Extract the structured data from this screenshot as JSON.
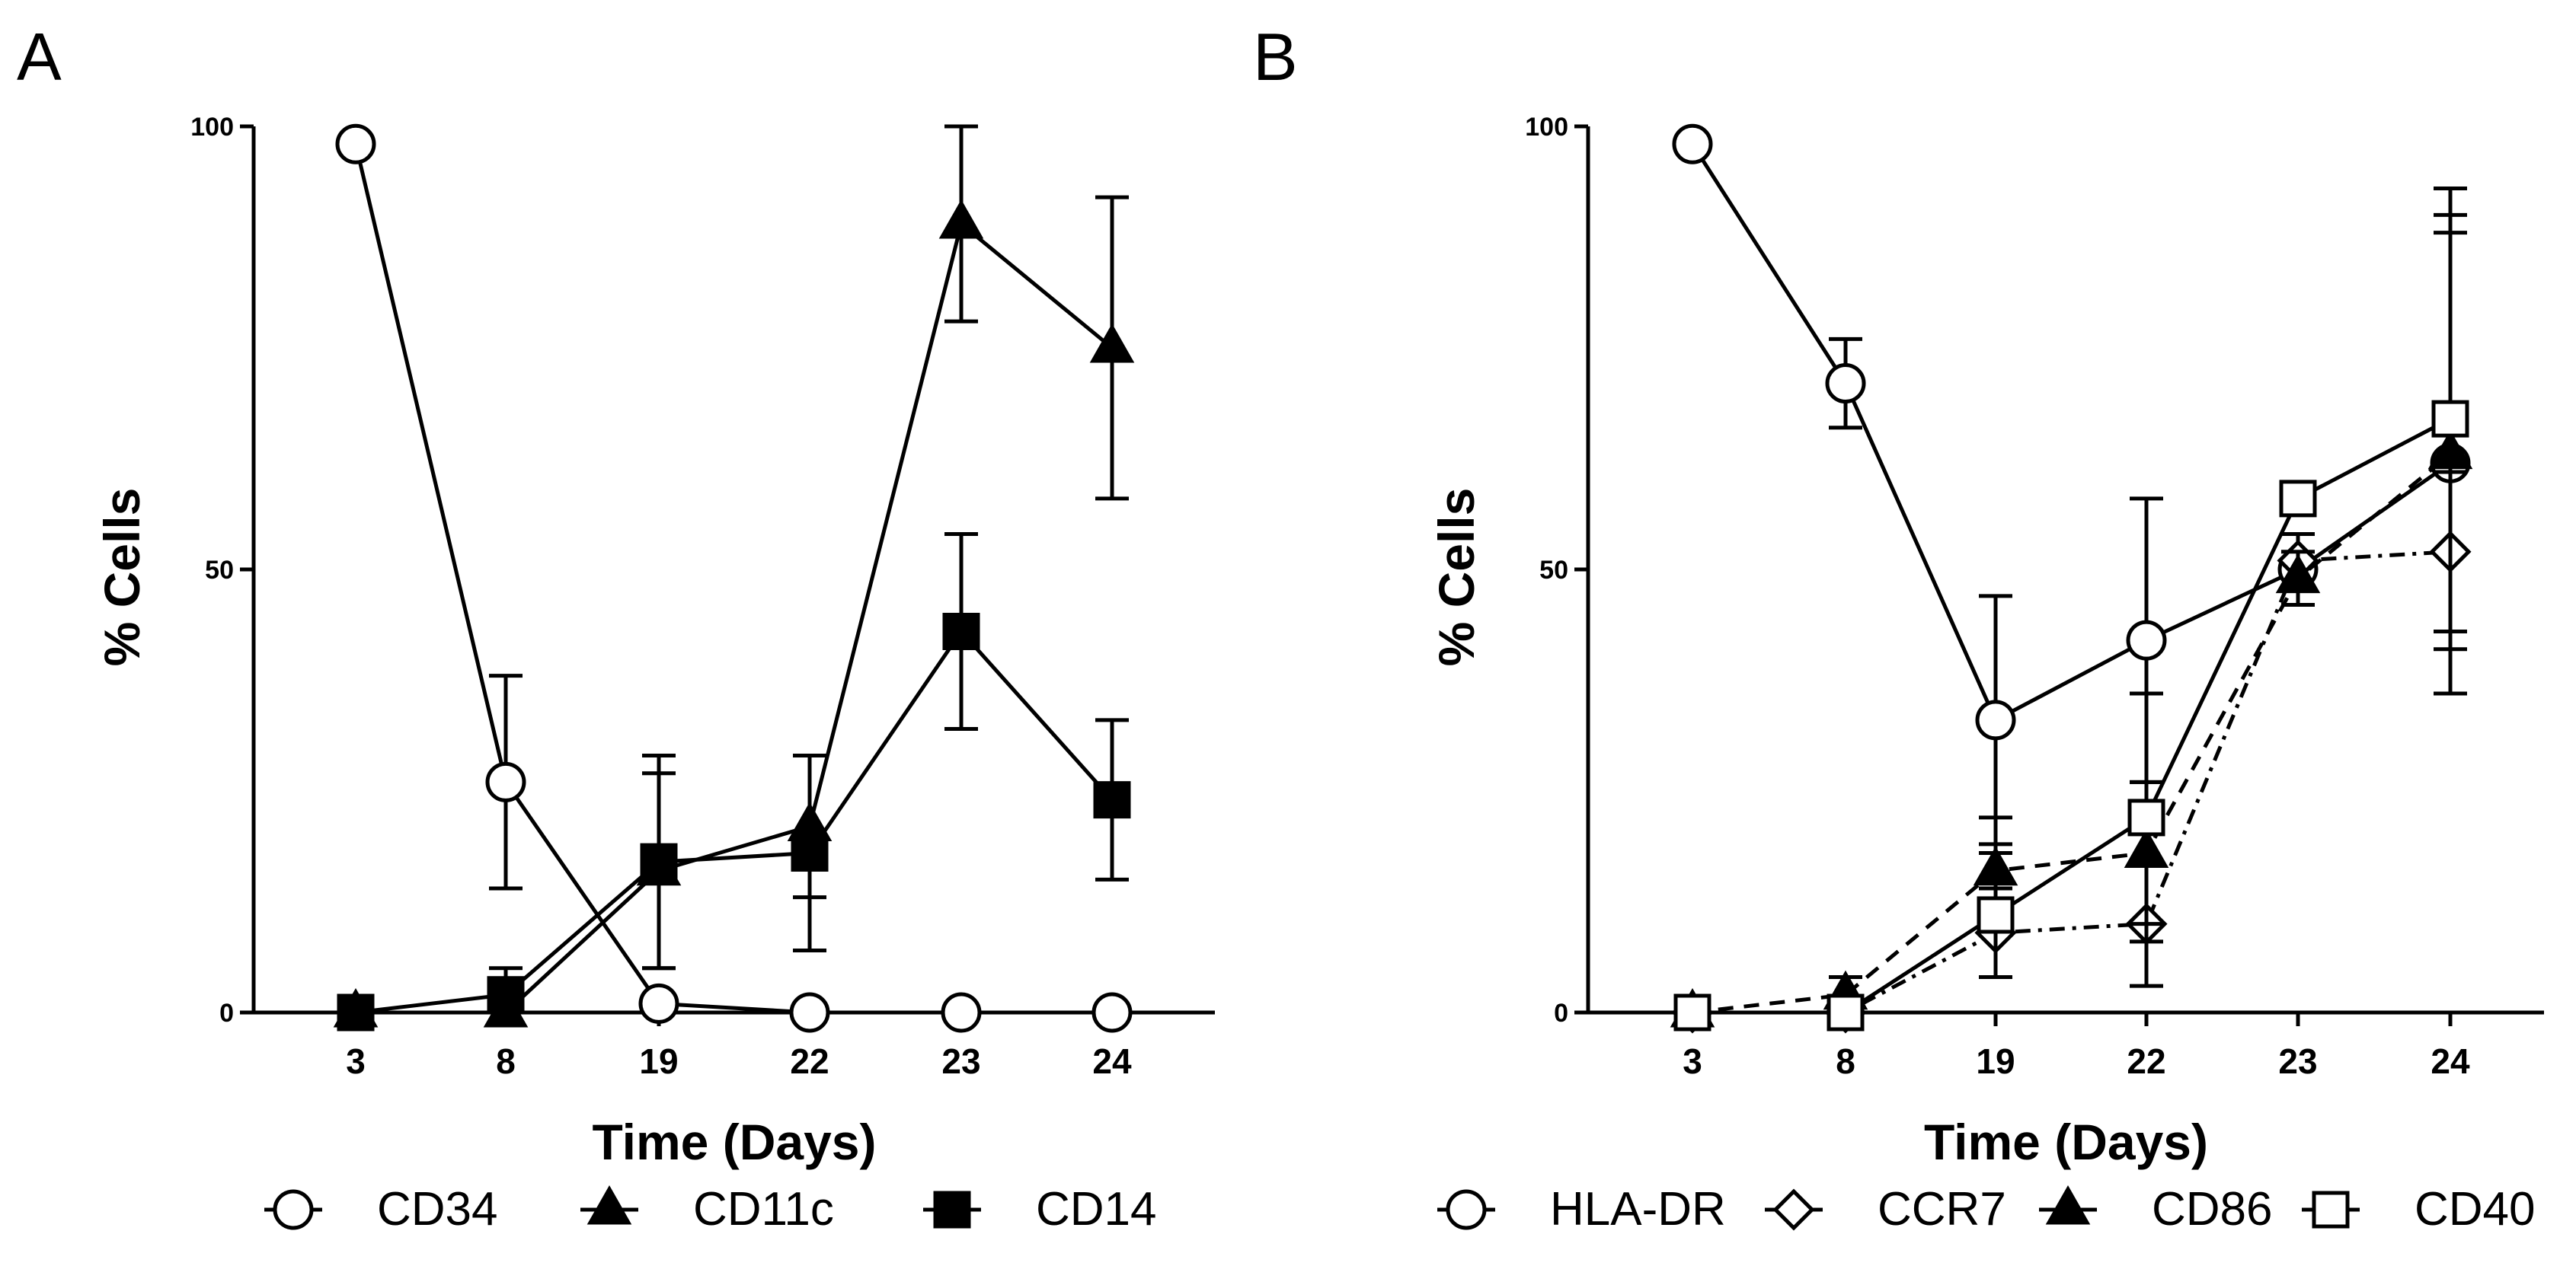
{
  "chart_data": [
    {
      "panel_label": "A",
      "type": "line",
      "xlabel": "Time (Days)",
      "ylabel": "% Cells",
      "categories": [
        "3",
        "8",
        "19",
        "22",
        "23",
        "24"
      ],
      "ylim": [
        0,
        100
      ],
      "yticks": [
        "0",
        "50",
        "100"
      ],
      "legend_position": "bottom",
      "series": [
        {
          "name": "CD34",
          "marker": "circle-open",
          "line": "solid",
          "values": [
            98,
            26,
            1,
            0,
            0,
            0
          ],
          "errors": [
            null,
            12,
            null,
            null,
            null,
            null
          ]
        },
        {
          "name": "CD11c",
          "marker": "triangle-filled",
          "line": "solid",
          "values": [
            0,
            0,
            16,
            21,
            89,
            75
          ],
          "errors": [
            null,
            3,
            11,
            8,
            11,
            17
          ]
        },
        {
          "name": "CD14",
          "marker": "square-filled",
          "line": "solid",
          "values": [
            0,
            2,
            17,
            18,
            43,
            24
          ],
          "errors": [
            null,
            3,
            12,
            11,
            11,
            9
          ]
        }
      ]
    },
    {
      "panel_label": "B",
      "type": "line",
      "xlabel": "Time (Days)",
      "ylabel": "% Cells",
      "categories": [
        "3",
        "8",
        "19",
        "22",
        "23",
        "24"
      ],
      "ylim": [
        0,
        100
      ],
      "yticks": [
        "0",
        "50",
        "100"
      ],
      "legend_position": "bottom",
      "series": [
        {
          "name": "HLA-DR",
          "marker": "circle-open",
          "line": "solid",
          "values": [
            98,
            71,
            33,
            42,
            50,
            62
          ],
          "errors": [
            null,
            5,
            14,
            16,
            null,
            26
          ]
        },
        {
          "name": "CCR7",
          "marker": "diamond-open",
          "line": "dashdot",
          "values": [
            0,
            0,
            9,
            10,
            51,
            52
          ],
          "errors": [
            null,
            null,
            5,
            7,
            3,
            9
          ]
        },
        {
          "name": "CD86",
          "marker": "triangle-filled",
          "line": "dashed",
          "values": [
            0,
            2,
            16,
            18,
            49,
            63
          ],
          "errors": [
            null,
            2,
            6,
            8,
            3,
            27
          ]
        },
        {
          "name": "CD40",
          "marker": "square-open",
          "line": "solid",
          "values": [
            0,
            0,
            11,
            22,
            58,
            67
          ],
          "errors": [
            null,
            null,
            7,
            14,
            null,
            26
          ]
        }
      ]
    }
  ]
}
